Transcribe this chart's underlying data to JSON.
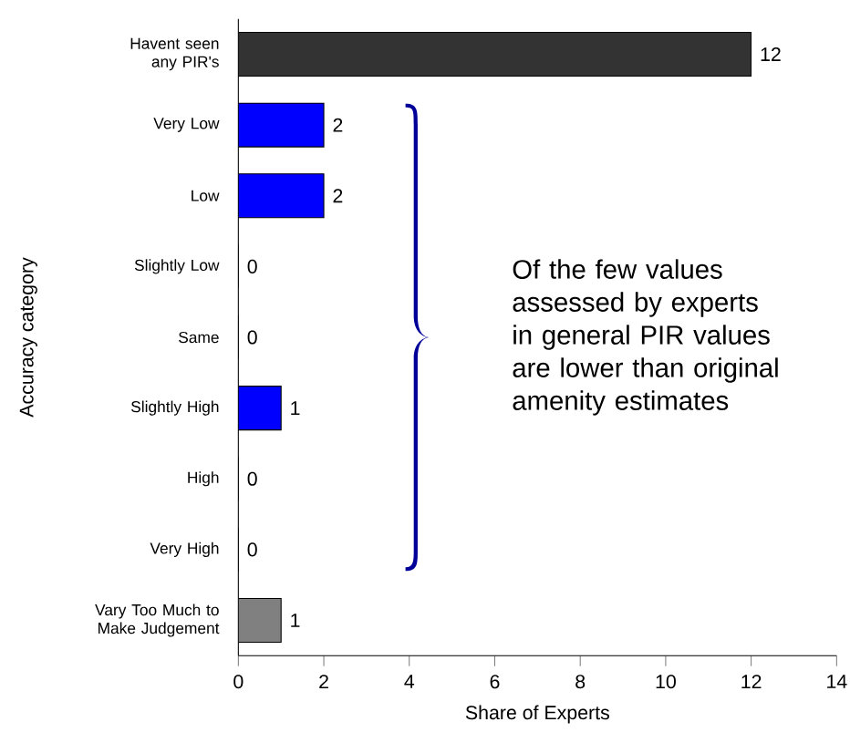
{
  "chart_data": {
    "type": "bar",
    "orientation": "horizontal",
    "xlabel": "Share of Experts",
    "ylabel": "Accuracy category",
    "categories": [
      "Havent seen any PIR's",
      "Very Low",
      "Low",
      "Slightly Low",
      "Same",
      "Slightly High",
      "High",
      "Very High",
      "Vary Too Much to Make Judgement"
    ],
    "values": [
      12,
      2,
      2,
      0,
      0,
      1,
      0,
      0,
      1
    ],
    "colors": [
      "#333333",
      "#0000ff",
      "#0000ff",
      "#0000ff",
      "#0000ff",
      "#0000ff",
      "#0000ff",
      "#0000ff",
      "#808080"
    ],
    "xlim": [
      0,
      14
    ],
    "xticks": [
      0,
      2,
      4,
      6,
      8,
      10,
      12,
      14
    ],
    "data_labels": true,
    "annotations": [
      "Of the few values assessed by experts in general PIR values are lower than original amenity estimates"
    ]
  }
}
